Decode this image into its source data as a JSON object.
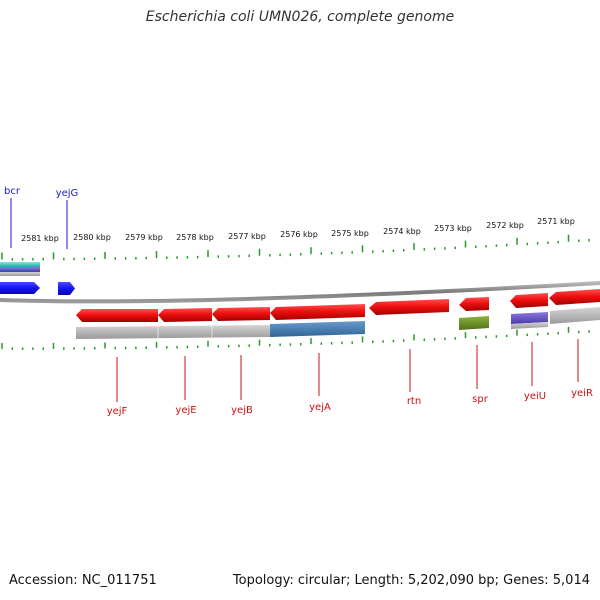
{
  "title": "Escherichia coli UMN026, complete genome",
  "footer": {
    "accession": "Accession: NC_011751",
    "summary": "Topology: circular; Length: 5,202,090 bp; Genes: 5,014"
  },
  "scale_labels": [
    "2581 kbp",
    "2580 kbp",
    "2579 kbp",
    "2578 kbp",
    "2577 kbp",
    "2576 kbp",
    "2575 kbp",
    "2574 kbp",
    "2573 kbp",
    "2572 kbp",
    "2571 kbp"
  ],
  "colors": {
    "forward_gene": "#1414f0",
    "reverse_gene": "#e80f0f",
    "forward_label": "#1a1acc",
    "reverse_label": "#cc1111",
    "ticks": "#2a9a2a",
    "backbone": "#888888"
  },
  "genes_top": [
    {
      "label": "bcr",
      "strand": "forward"
    },
    {
      "label": "yejG",
      "strand": "forward"
    }
  ],
  "genes_bottom": [
    {
      "label": "yejF",
      "strand": "reverse"
    },
    {
      "label": "yejE",
      "strand": "reverse"
    },
    {
      "label": "yejB",
      "strand": "reverse"
    },
    {
      "label": "yejA",
      "strand": "reverse"
    },
    {
      "label": "rtn",
      "strand": "reverse"
    },
    {
      "label": "spr",
      "strand": "reverse"
    },
    {
      "label": "yeiU",
      "strand": "reverse"
    },
    {
      "label": "yeiR",
      "strand": "reverse"
    }
  ]
}
